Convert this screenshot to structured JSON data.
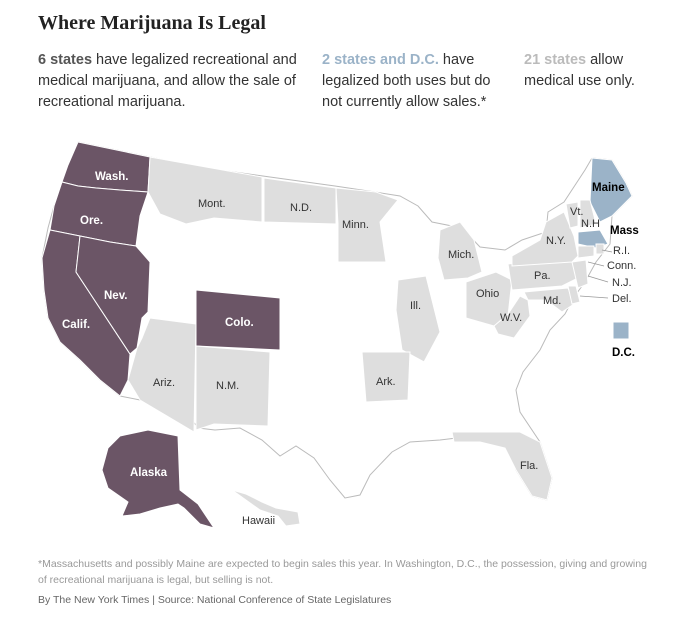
{
  "title": "Where Marijuana Is Legal",
  "legend": {
    "recreational": {
      "count": "6 states",
      "text": "have legalized recreational and medical marijuana, and allow the sale of recreational marijuana."
    },
    "both_no_sales": {
      "count": "2 states and D.C.",
      "text": "have legalized both uses but do not currently allow sales.*"
    },
    "medical": {
      "count": "21 states",
      "text": "allow medical use only."
    }
  },
  "colors": {
    "recreational": "#6b5566",
    "both_no_sales": "#9bb3c8",
    "medical": "#dedede",
    "none": "#ffffff",
    "border": "#ffffff",
    "outline": "#bbbbbb"
  },
  "map": {
    "labels": {
      "wash": "Wash.",
      "ore": "Ore.",
      "calif": "Calif.",
      "nev": "Nev.",
      "colo": "Colo.",
      "alaska": "Alaska",
      "maine": "Maine",
      "mass": "Mass",
      "dc": "D.C.",
      "mont": "Mont.",
      "nd": "N.D.",
      "minn": "Minn.",
      "mich": "Mich.",
      "ill": "Ill.",
      "ohio": "Ohio",
      "wv": "W.V.",
      "pa": "Pa.",
      "md": "Md.",
      "ny": "N.Y.",
      "vt": "Vt.",
      "nh": "N.H",
      "ri": "R.I.",
      "conn": "Conn.",
      "nj": "N.J.",
      "del": "Del.",
      "ariz": "Ariz.",
      "nm": "N.M.",
      "ark": "Ark.",
      "fla": "Fla.",
      "hawaii": "Hawaii"
    }
  },
  "footnote": "*Massachusetts and possibly Maine are expected to begin sales this year. In Washington, D.C., the possession, giving and growing of recreational marijuana is legal, but selling is not.",
  "credit": "By The New York Times | Source: National Conference of State Legislatures"
}
